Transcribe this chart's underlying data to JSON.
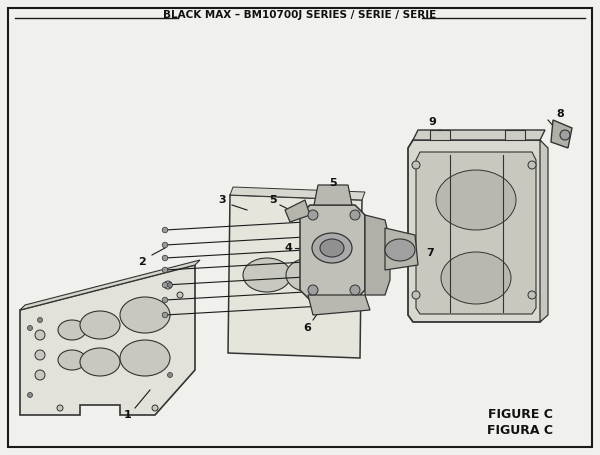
{
  "title": "BLACK MAX – BM10700J SERIES / SÉRIE / SERIE",
  "figure_label": "FIGURE C",
  "figura_label": "FIGURA C",
  "bg_color": "#f0f0ec",
  "line_color": "#1a1a1a",
  "part_fill": "#e2e2da",
  "part_edge": "#333333",
  "hole_fill": "#c8c8c0",
  "carb_fill": "#c0c0b8",
  "box_fill": "#d8d8d0",
  "label_color": "#111111"
}
